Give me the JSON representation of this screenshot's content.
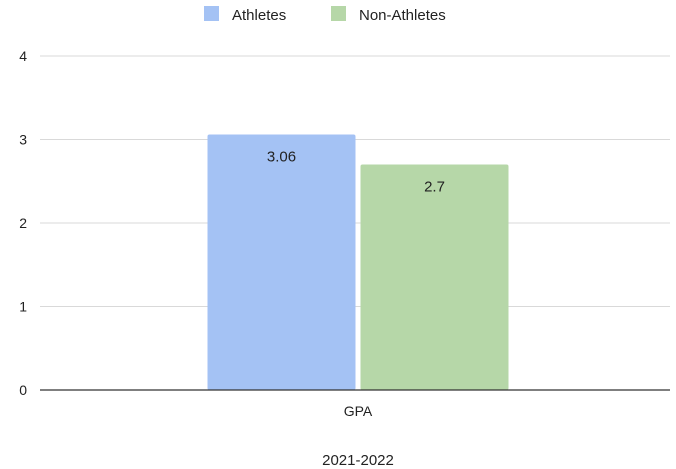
{
  "chart_data": {
    "type": "bar",
    "categories": [
      "GPA"
    ],
    "series": [
      {
        "name": "Athletes",
        "values": [
          3.06
        ],
        "color": "#a4c2f4"
      },
      {
        "name": "Non-Athletes",
        "values": [
          2.7
        ],
        "color": "#b6d7a8"
      }
    ],
    "data_labels": [
      "3.06",
      "2.7"
    ],
    "xlabel": "2021-2022",
    "ylabel": "",
    "ylim": [
      0,
      4
    ],
    "yticks": [
      "0",
      "1",
      "2",
      "3",
      "4"
    ],
    "grid": true,
    "legend_position": "top-center",
    "colors": {
      "grid": "#d9d9d9",
      "axis": "#333333",
      "text": "#222222"
    }
  }
}
